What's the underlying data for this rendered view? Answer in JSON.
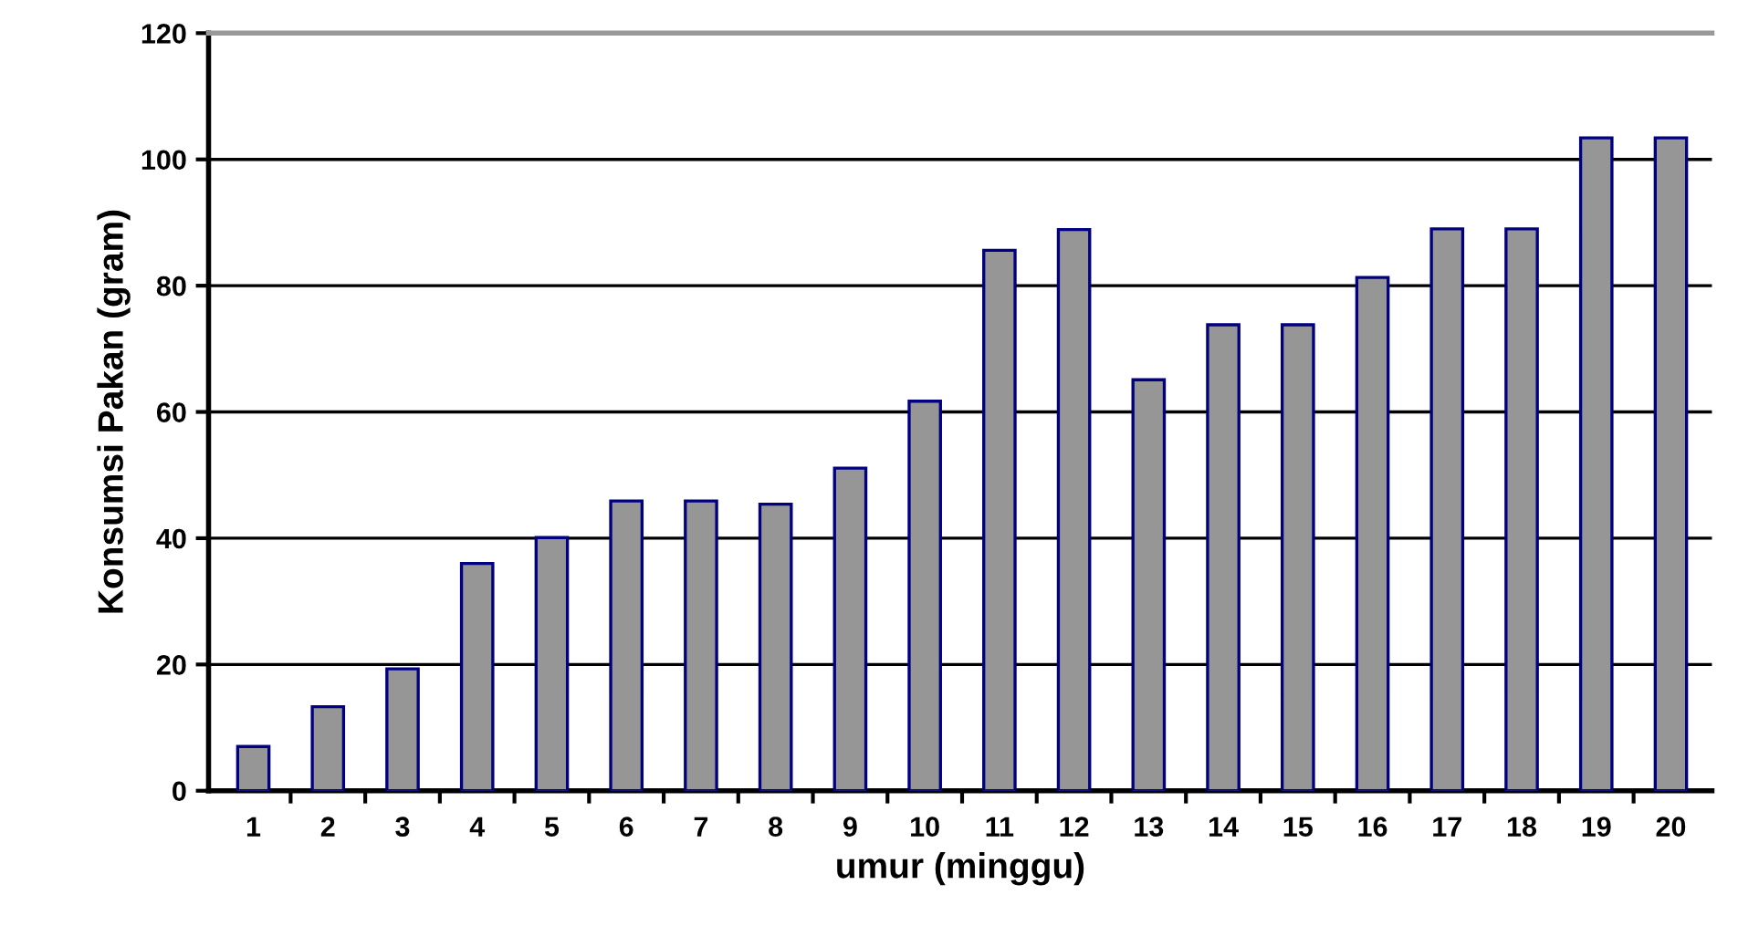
{
  "chart_data": {
    "type": "bar",
    "xlabel": "umur (minggu)",
    "ylabel": "Konsumsi Pakan (gram)",
    "categories": [
      "1",
      "2",
      "3",
      "4",
      "5",
      "6",
      "7",
      "8",
      "9",
      "10",
      "11",
      "12",
      "13",
      "14",
      "15",
      "16",
      "17",
      "18",
      "19",
      "20"
    ],
    "values": [
      7,
      13.3,
      19.3,
      36,
      40.1,
      45.9,
      45.9,
      45.4,
      51.1,
      61.7,
      85.6,
      88.9,
      65.1,
      73.8,
      73.8,
      81.3,
      89,
      89,
      103.4,
      103.4
    ],
    "color": "#969696",
    "ylim": [
      0,
      120
    ],
    "yticks": [
      0,
      20,
      40,
      60,
      80,
      100,
      120
    ],
    "grid": "y"
  }
}
